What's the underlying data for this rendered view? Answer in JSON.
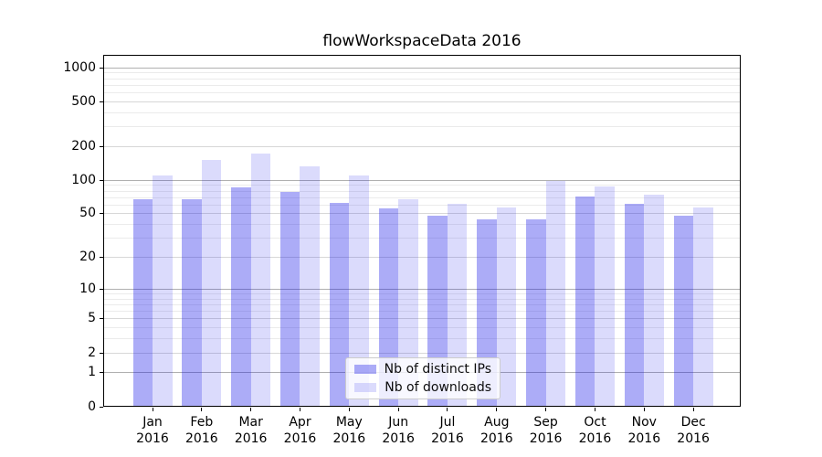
{
  "chart_data": {
    "type": "bar",
    "title": "flowWorkspaceData 2016",
    "x_categories": [
      "Jan",
      "Feb",
      "Mar",
      "Apr",
      "May",
      "Jun",
      "Jul",
      "Aug",
      "Sep",
      "Oct",
      "Nov",
      "Dec"
    ],
    "x_year": "2016",
    "y_scale": "log10(value+1)",
    "y_ticks": [
      0,
      1,
      2,
      5,
      10,
      20,
      50,
      100,
      200,
      500,
      1000
    ],
    "y_minor_gridlines": [
      3,
      4,
      6,
      7,
      8,
      9,
      30,
      40,
      60,
      70,
      80,
      90,
      300,
      400,
      600,
      700,
      800,
      900
    ],
    "ylim": [
      0,
      1280
    ],
    "grid": true,
    "legend_position": "lower-center",
    "colors": {
      "distinct_ips_hex": "#aaaaf5",
      "downloads_hex": "#dbdbfa",
      "gridline_major": "#b0b0b0",
      "gridline_medium": "#d7d7d7",
      "gridline_minor": "#ebebeb"
    },
    "series": [
      {
        "name": "Nb of distinct IPs",
        "fill": "rgba(16,16,232,0.35)",
        "values": [
          67,
          67,
          86,
          78,
          62,
          55,
          48,
          44,
          44,
          71,
          61,
          48
        ]
      },
      {
        "name": "Nb of downloads",
        "fill": "rgba(16,16,232,0.15)",
        "values": [
          110,
          150,
          173,
          132,
          110,
          67,
          61,
          57,
          97,
          87,
          74,
          56
        ]
      }
    ]
  }
}
